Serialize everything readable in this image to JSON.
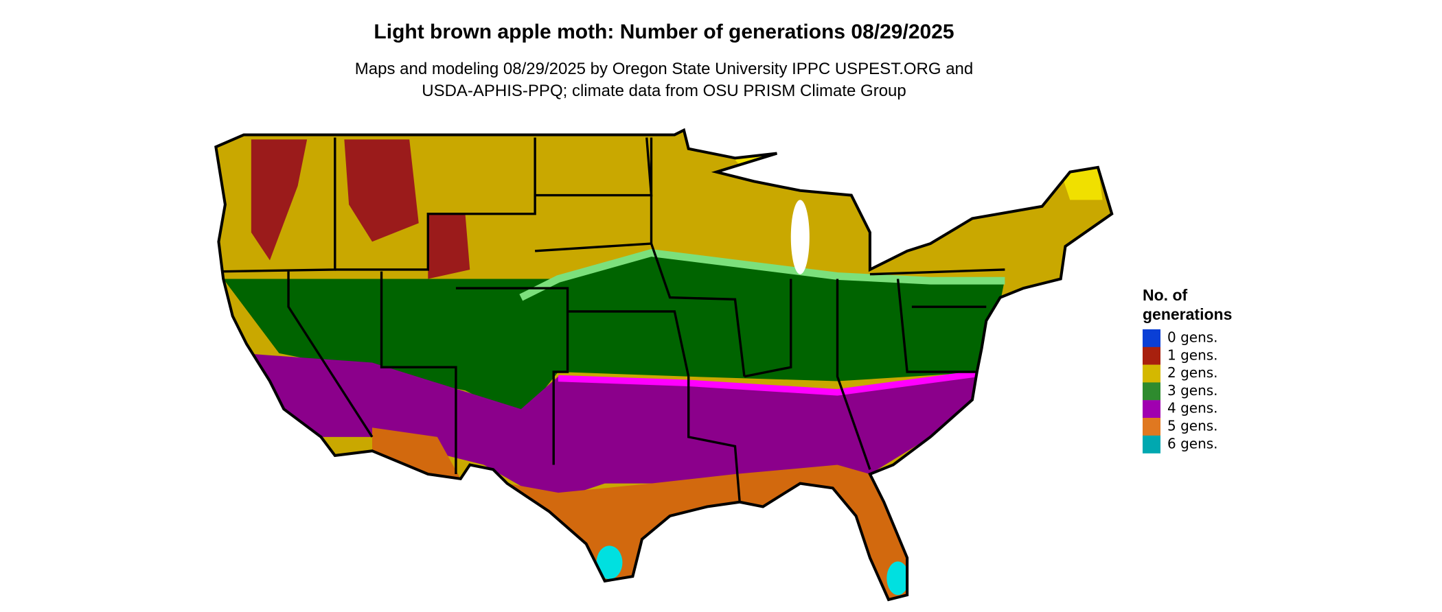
{
  "title": "Light brown apple moth: Number of generations 08/29/2025",
  "subtitle": [
    "Maps and modeling 08/29/2025 by Oregon State University IPPC USPEST.ORG and",
    "USDA-APHIS-PPQ; climate data from OSU PRISM Climate Group"
  ],
  "legend": {
    "title": [
      "No. of",
      "generations"
    ],
    "items": [
      {
        "label": "0 gens.",
        "color": "#0a3fd6"
      },
      {
        "label": "1 gens.",
        "color": "#a8200e"
      },
      {
        "label": "2 gens.",
        "color": "#d4b800"
      },
      {
        "label": "3 gens.",
        "color": "#2e8b2e"
      },
      {
        "label": "4 gens.",
        "color": "#a000b0"
      },
      {
        "label": "5 gens.",
        "color": "#e07820"
      },
      {
        "label": "6 gens.",
        "color": "#00a8b0"
      }
    ]
  }
}
